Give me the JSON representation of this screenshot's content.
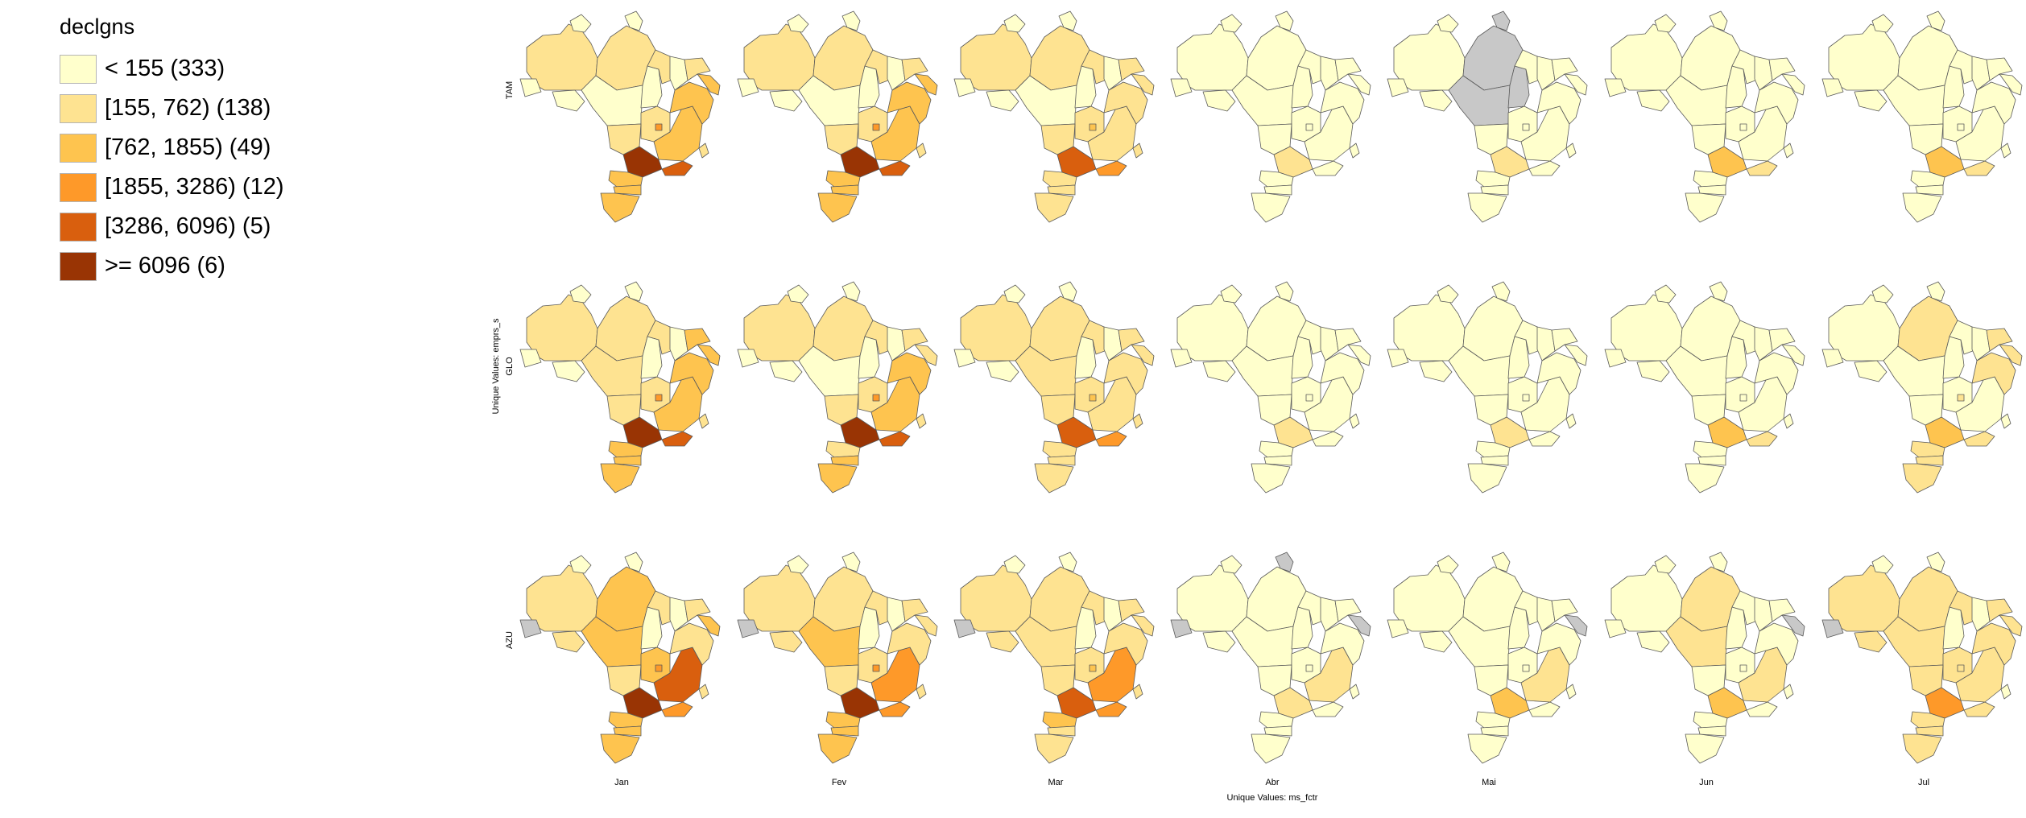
{
  "legend": {
    "title": "declgns",
    "items": [
      {
        "label": "< 155 (333)",
        "color": "#FFFFCC",
        "class": 1
      },
      {
        "label": "[155, 762) (138)",
        "color": "#FEE391",
        "class": 2
      },
      {
        "label": "[762, 1855) (49)",
        "color": "#FEC44F",
        "class": 3
      },
      {
        "label": "[1855, 3286) (12)",
        "color": "#FE9929",
        "class": 4
      },
      {
        "label": "[3286, 6096) (5)",
        "color": "#D95F0E",
        "class": 5
      },
      {
        "label": ">= 6096 (6)",
        "color": "#993404",
        "class": 6
      }
    ],
    "missing_color": "#C8C8C8"
  },
  "axes": {
    "x_title": "Unique Values: ms_fctr",
    "y_title": "Unique Values: emprs_s",
    "columns": [
      "Jan",
      "Fev",
      "Mar",
      "Abr",
      "Mai",
      "Jun",
      "Jul"
    ],
    "rows": [
      "TAM",
      "GLO",
      "AZU"
    ]
  },
  "chart_data": {
    "type": "choropleth-small-multiples",
    "variable": "declgns",
    "row_variable": "emprs_s",
    "column_variable": "ms_fctr",
    "rows": [
      "TAM",
      "GLO",
      "AZU"
    ],
    "columns": [
      "Jan",
      "Fev",
      "Mar",
      "Abr",
      "Mai",
      "Jun",
      "Jul"
    ],
    "breaks": [
      155,
      762,
      1855,
      3286,
      6096
    ],
    "region_order": [
      "AM",
      "PA",
      "MT",
      "GO",
      "MG",
      "BA",
      "SP",
      "PR",
      "SC",
      "RS",
      "NE",
      "RR",
      "AP",
      "AC",
      "RO",
      "TO",
      "MS",
      "DF",
      "ES",
      "RJ",
      "MA",
      "PI",
      "CE"
    ],
    "panels": [
      [
        {
          "AM": 2,
          "PA": 2,
          "MT": 1,
          "GO": 2,
          "MG": 3,
          "BA": 3,
          "SP": 6,
          "PR": 3,
          "SC": 3,
          "RS": 3,
          "NE": 3,
          "RR": 1,
          "AP": 1,
          "AC": 1,
          "RO": 1,
          "TO": 1,
          "MS": 2,
          "DF": 4,
          "ES": 2,
          "RJ": 5,
          "MA": 2,
          "PI": 1,
          "CE": 2
        },
        {
          "AM": 2,
          "PA": 2,
          "MT": 1,
          "GO": 2,
          "MG": 3,
          "BA": 3,
          "SP": 6,
          "PR": 3,
          "SC": 3,
          "RS": 3,
          "NE": 3,
          "RR": 1,
          "AP": 1,
          "AC": 1,
          "RO": 1,
          "TO": 1,
          "MS": 2,
          "DF": 4,
          "ES": 2,
          "RJ": 5,
          "MA": 2,
          "PI": 1,
          "CE": 2
        },
        {
          "AM": 2,
          "PA": 2,
          "MT": 1,
          "GO": 2,
          "MG": 2,
          "BA": 2,
          "SP": 5,
          "PR": 2,
          "SC": 2,
          "RS": 2,
          "NE": 2,
          "RR": 1,
          "AP": 1,
          "AC": 1,
          "RO": 1,
          "TO": 1,
          "MS": 2,
          "DF": 3,
          "ES": 2,
          "RJ": 4,
          "MA": 2,
          "PI": 1,
          "CE": 2
        },
        {
          "AM": 1,
          "PA": 1,
          "MT": 1,
          "GO": 1,
          "MG": 1,
          "BA": 1,
          "SP": 2,
          "PR": 1,
          "SC": 1,
          "RS": 1,
          "NE": 1,
          "RR": 1,
          "AP": 1,
          "AC": 1,
          "RO": 1,
          "TO": 1,
          "MS": 1,
          "DF": 1,
          "ES": 1,
          "RJ": 1,
          "MA": 1,
          "PI": 1,
          "CE": 1
        },
        {
          "AM": 1,
          "PA": 0,
          "MT": 0,
          "GO": 1,
          "MG": 1,
          "BA": 1,
          "SP": 2,
          "PR": 1,
          "SC": 1,
          "RS": 1,
          "NE": 1,
          "RR": 1,
          "AP": 0,
          "AC": 1,
          "RO": 1,
          "TO": 0,
          "MS": 1,
          "DF": 1,
          "ES": 1,
          "RJ": 1,
          "MA": 1,
          "PI": 1,
          "CE": 1
        },
        {
          "AM": 1,
          "PA": 1,
          "MT": 1,
          "GO": 1,
          "MG": 1,
          "BA": 1,
          "SP": 3,
          "PR": 1,
          "SC": 1,
          "RS": 1,
          "NE": 1,
          "RR": 1,
          "AP": 1,
          "AC": 1,
          "RO": 1,
          "TO": 1,
          "MS": 1,
          "DF": 1,
          "ES": 1,
          "RJ": 2,
          "MA": 1,
          "PI": 1,
          "CE": 1
        },
        {
          "AM": 1,
          "PA": 1,
          "MT": 1,
          "GO": 1,
          "MG": 1,
          "BA": 1,
          "SP": 3,
          "PR": 1,
          "SC": 1,
          "RS": 1,
          "NE": 1,
          "RR": 1,
          "AP": 1,
          "AC": 1,
          "RO": 1,
          "TO": 1,
          "MS": 1,
          "DF": 1,
          "ES": 1,
          "RJ": 2,
          "MA": 1,
          "PI": 1,
          "CE": 1
        }
      ],
      [
        {
          "AM": 2,
          "PA": 2,
          "MT": 2,
          "GO": 2,
          "MG": 3,
          "BA": 3,
          "SP": 6,
          "PR": 3,
          "SC": 3,
          "RS": 3,
          "NE": 3,
          "RR": 1,
          "AP": 1,
          "AC": 1,
          "RO": 1,
          "TO": 1,
          "MS": 2,
          "DF": 4,
          "ES": 2,
          "RJ": 5,
          "MA": 2,
          "PI": 1,
          "CE": 3
        },
        {
          "AM": 2,
          "PA": 2,
          "MT": 1,
          "GO": 2,
          "MG": 3,
          "BA": 3,
          "SP": 6,
          "PR": 2,
          "SC": 3,
          "RS": 3,
          "NE": 2,
          "RR": 1,
          "AP": 1,
          "AC": 1,
          "RO": 1,
          "TO": 1,
          "MS": 2,
          "DF": 4,
          "ES": 2,
          "RJ": 5,
          "MA": 2,
          "PI": 1,
          "CE": 2
        },
        {
          "AM": 2,
          "PA": 2,
          "MT": 2,
          "GO": 2,
          "MG": 2,
          "BA": 2,
          "SP": 5,
          "PR": 2,
          "SC": 2,
          "RS": 2,
          "NE": 2,
          "RR": 1,
          "AP": 1,
          "AC": 1,
          "RO": 1,
          "TO": 1,
          "MS": 2,
          "DF": 3,
          "ES": 2,
          "RJ": 4,
          "MA": 2,
          "PI": 1,
          "CE": 2
        },
        {
          "AM": 1,
          "PA": 1,
          "MT": 1,
          "GO": 1,
          "MG": 1,
          "BA": 1,
          "SP": 2,
          "PR": 1,
          "SC": 1,
          "RS": 1,
          "NE": 1,
          "RR": 1,
          "AP": 1,
          "AC": 1,
          "RO": 1,
          "TO": 1,
          "MS": 1,
          "DF": 1,
          "ES": 1,
          "RJ": 1,
          "MA": 1,
          "PI": 1,
          "CE": 1
        },
        {
          "AM": 1,
          "PA": 1,
          "MT": 1,
          "GO": 1,
          "MG": 1,
          "BA": 1,
          "SP": 2,
          "PR": 1,
          "SC": 1,
          "RS": 1,
          "NE": 1,
          "RR": 1,
          "AP": 1,
          "AC": 1,
          "RO": 1,
          "TO": 1,
          "MS": 1,
          "DF": 1,
          "ES": 1,
          "RJ": 1,
          "MA": 1,
          "PI": 1,
          "CE": 1
        },
        {
          "AM": 1,
          "PA": 1,
          "MT": 1,
          "GO": 1,
          "MG": 1,
          "BA": 1,
          "SP": 3,
          "PR": 1,
          "SC": 1,
          "RS": 1,
          "NE": 1,
          "RR": 1,
          "AP": 1,
          "AC": 1,
          "RO": 1,
          "TO": 1,
          "MS": 1,
          "DF": 1,
          "ES": 1,
          "RJ": 2,
          "MA": 1,
          "PI": 1,
          "CE": 1
        },
        {
          "AM": 1,
          "PA": 2,
          "MT": 1,
          "GO": 1,
          "MG": 1,
          "BA": 2,
          "SP": 3,
          "PR": 2,
          "SC": 2,
          "RS": 2,
          "NE": 2,
          "RR": 1,
          "AP": 1,
          "AC": 1,
          "RO": 1,
          "TO": 1,
          "MS": 1,
          "DF": 2,
          "ES": 1,
          "RJ": 2,
          "MA": 1,
          "PI": 1,
          "CE": 2
        }
      ],
      [
        {
          "AM": 2,
          "PA": 3,
          "MT": 3,
          "GO": 3,
          "MG": 5,
          "BA": 2,
          "SP": 6,
          "PR": 3,
          "SC": 3,
          "RS": 3,
          "NE": 3,
          "RR": 1,
          "AP": 1,
          "AC": 0,
          "RO": 2,
          "TO": 1,
          "MS": 2,
          "DF": 4,
          "ES": 2,
          "RJ": 4,
          "MA": 2,
          "PI": 1,
          "CE": 2
        },
        {
          "AM": 2,
          "PA": 2,
          "MT": 3,
          "GO": 2,
          "MG": 4,
          "BA": 2,
          "SP": 6,
          "PR": 3,
          "SC": 3,
          "RS": 3,
          "NE": 2,
          "RR": 1,
          "AP": 1,
          "AC": 0,
          "RO": 2,
          "TO": 1,
          "MS": 2,
          "DF": 4,
          "ES": 2,
          "RJ": 4,
          "MA": 2,
          "PI": 1,
          "CE": 2
        },
        {
          "AM": 2,
          "PA": 2,
          "MT": 2,
          "GO": 2,
          "MG": 4,
          "BA": 2,
          "SP": 5,
          "PR": 3,
          "SC": 2,
          "RS": 2,
          "NE": 2,
          "RR": 1,
          "AP": 1,
          "AC": 0,
          "RO": 2,
          "TO": 1,
          "MS": 2,
          "DF": 3,
          "ES": 2,
          "RJ": 4,
          "MA": 2,
          "PI": 1,
          "CE": 2
        },
        {
          "AM": 1,
          "PA": 1,
          "MT": 1,
          "GO": 1,
          "MG": 2,
          "BA": 1,
          "SP": 2,
          "PR": 1,
          "SC": 1,
          "RS": 1,
          "NE": 0,
          "RR": 1,
          "AP": 0,
          "AC": 0,
          "RO": 1,
          "TO": 1,
          "MS": 1,
          "DF": 1,
          "ES": 1,
          "RJ": 1,
          "MA": 1,
          "PI": 1,
          "CE": 1
        },
        {
          "AM": 1,
          "PA": 1,
          "MT": 1,
          "GO": 1,
          "MG": 2,
          "BA": 1,
          "SP": 3,
          "PR": 1,
          "SC": 1,
          "RS": 1,
          "NE": 0,
          "RR": 1,
          "AP": 1,
          "AC": 1,
          "RO": 1,
          "TO": 1,
          "MS": 1,
          "DF": 1,
          "ES": 1,
          "RJ": 1,
          "MA": 1,
          "PI": 1,
          "CE": 1
        },
        {
          "AM": 1,
          "PA": 2,
          "MT": 2,
          "GO": 1,
          "MG": 2,
          "BA": 1,
          "SP": 3,
          "PR": 1,
          "SC": 1,
          "RS": 1,
          "NE": 0,
          "RR": 1,
          "AP": 1,
          "AC": 1,
          "RO": 1,
          "TO": 1,
          "MS": 1,
          "DF": 1,
          "ES": 1,
          "RJ": 1,
          "MA": 1,
          "PI": 1,
          "CE": 1
        },
        {
          "AM": 2,
          "PA": 2,
          "MT": 2,
          "GO": 2,
          "MG": 2,
          "BA": 2,
          "SP": 4,
          "PR": 2,
          "SC": 2,
          "RS": 2,
          "NE": 2,
          "RR": 1,
          "AP": 1,
          "AC": 0,
          "RO": 2,
          "TO": 1,
          "MS": 2,
          "DF": 2,
          "ES": 1,
          "RJ": 2,
          "MA": 2,
          "PI": 1,
          "CE": 2
        }
      ]
    ]
  }
}
